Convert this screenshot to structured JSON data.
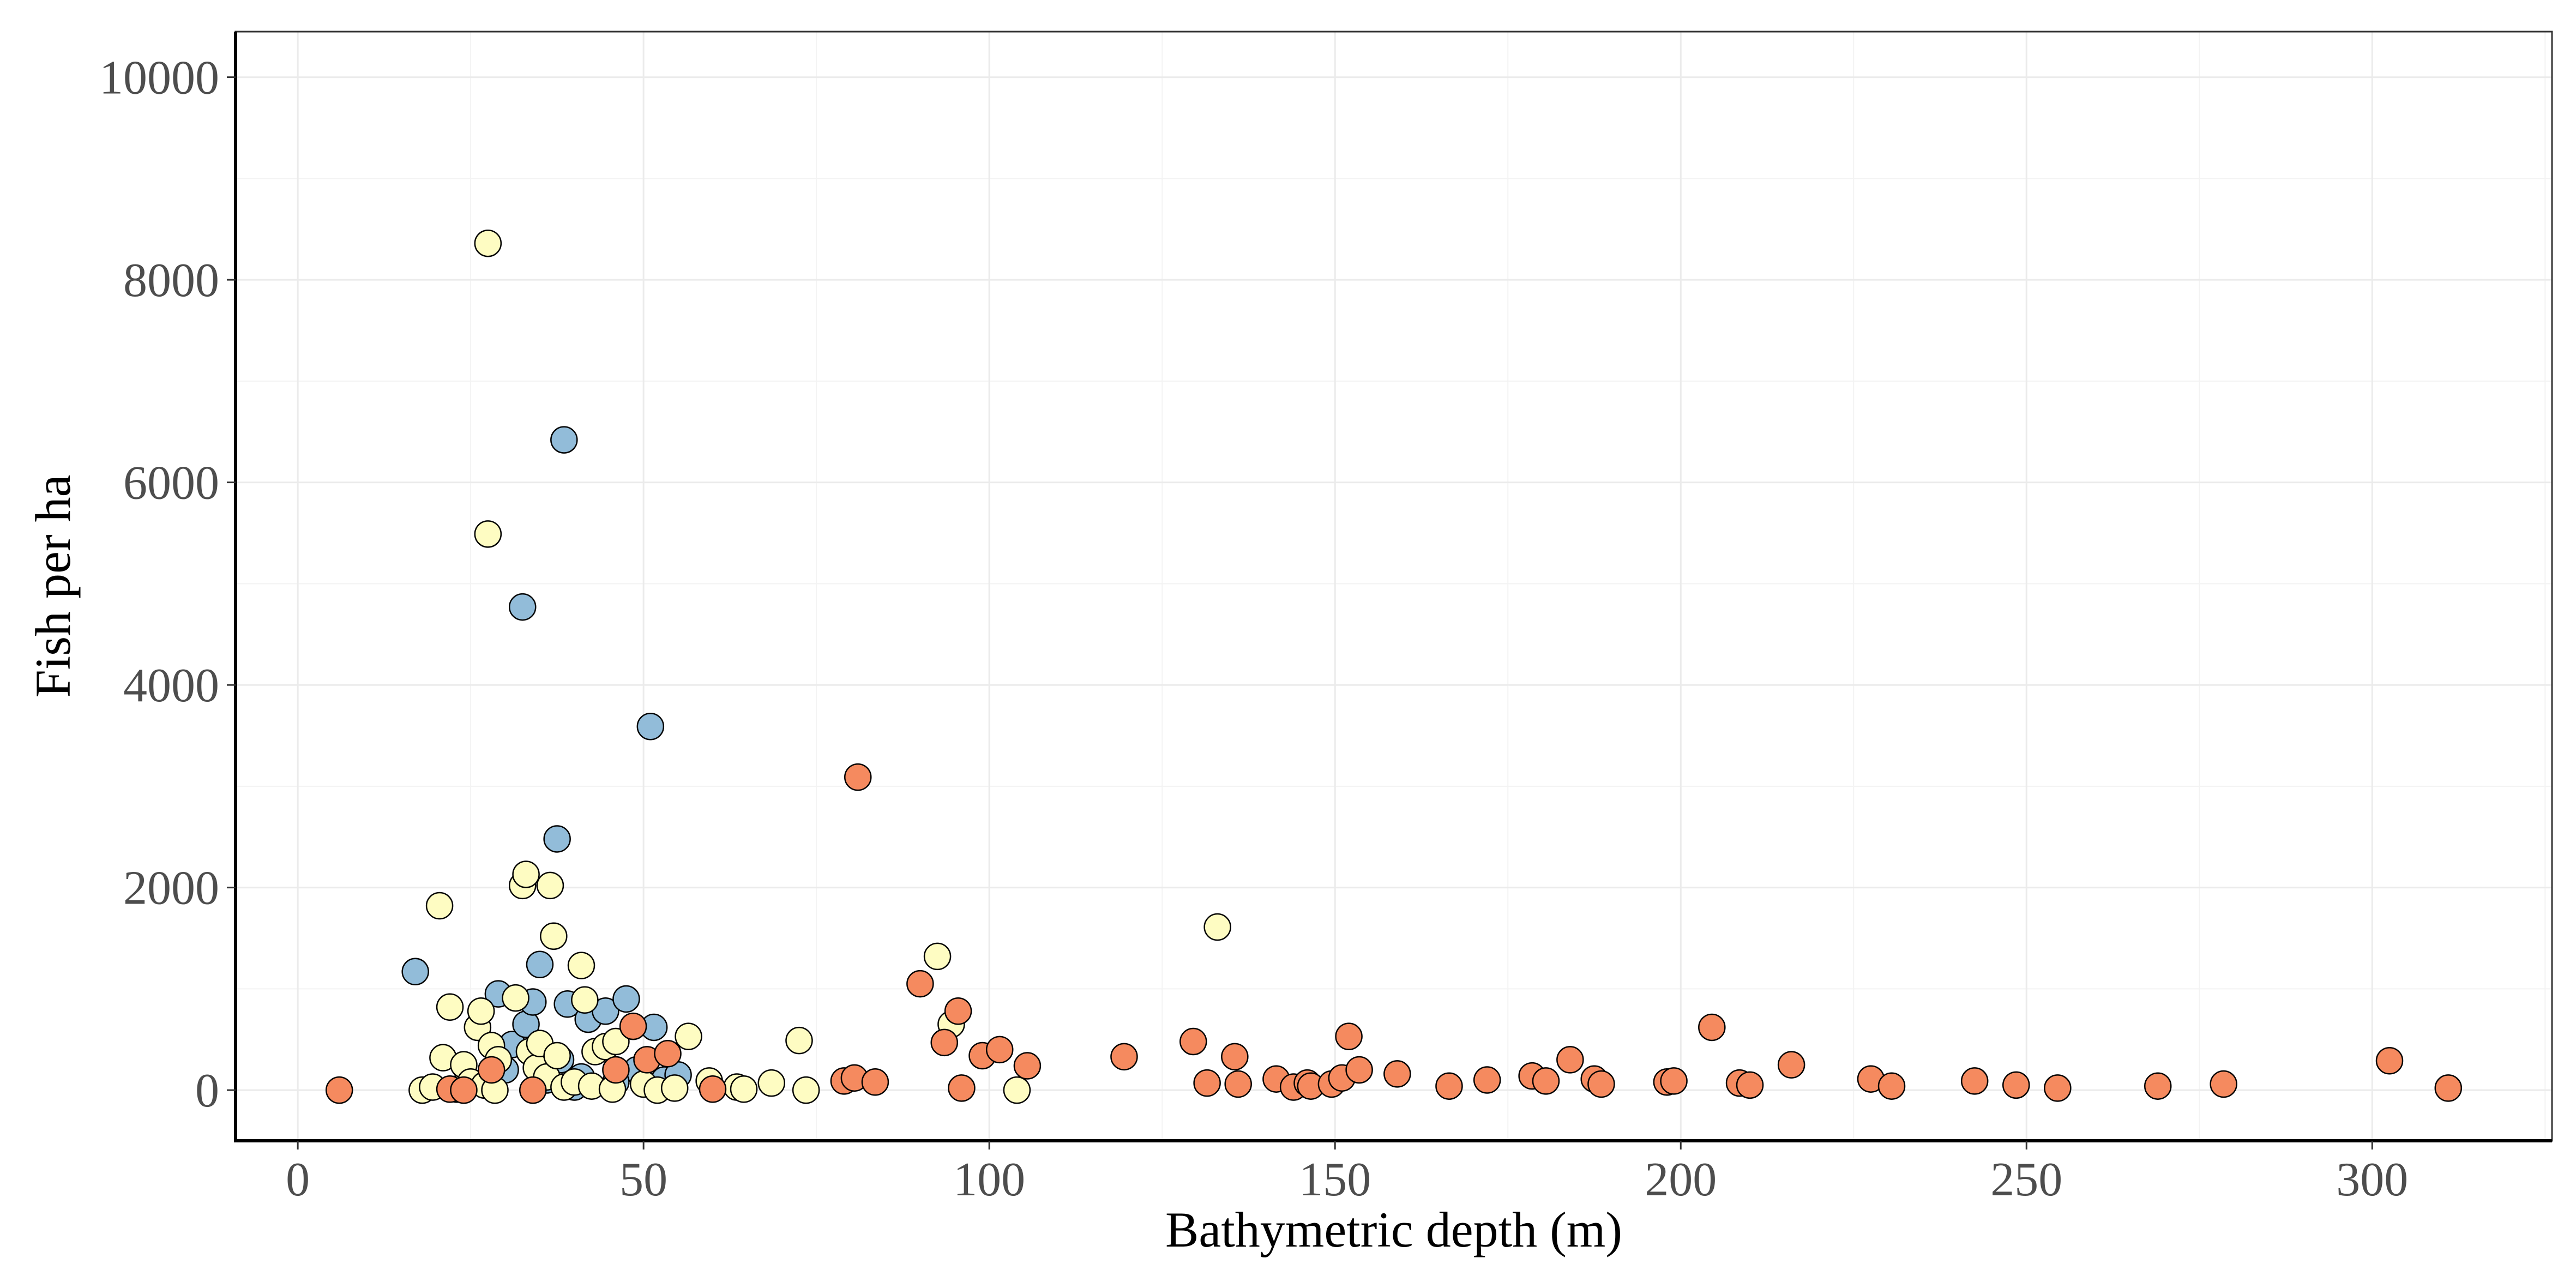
{
  "chart_data": {
    "type": "scatter",
    "title": "",
    "xlabel": "Bathymetric depth (m)",
    "ylabel": "Fish per ha",
    "xlim": [
      -9,
      326
    ],
    "ylim": [
      -500,
      10450
    ],
    "xticks": [
      0,
      50,
      100,
      150,
      200,
      250,
      300
    ],
    "xtick_labels": [
      "0",
      "50",
      "100",
      "150",
      "200",
      "250",
      "300"
    ],
    "yticks": [
      0,
      2000,
      4000,
      6000,
      8000,
      10000
    ],
    "ytick_labels": [
      "0",
      "2000",
      "4000",
      "6000",
      "8000",
      "10000"
    ],
    "grid": true,
    "legend": "none",
    "series": [
      {
        "name": "blue",
        "color": "#92bcd9",
        "points": [
          [
            17,
            1170
          ],
          [
            29,
            950
          ],
          [
            31,
            450
          ],
          [
            32.5,
            4770
          ],
          [
            33,
            650
          ],
          [
            34,
            870
          ],
          [
            35,
            1240
          ],
          [
            37.5,
            2480
          ],
          [
            38,
            300
          ],
          [
            38.5,
            6420
          ],
          [
            39,
            850
          ],
          [
            41,
            130
          ],
          [
            42,
            700
          ],
          [
            44.5,
            780
          ],
          [
            47.5,
            900
          ],
          [
            49,
            200
          ],
          [
            51,
            3590
          ],
          [
            51.5,
            620
          ],
          [
            53,
            100
          ],
          [
            55,
            150
          ],
          [
            30,
            200
          ],
          [
            36,
            100
          ],
          [
            40,
            30
          ],
          [
            46,
            80
          ]
        ]
      },
      {
        "name": "yellow",
        "color": "#fefcc2",
        "points": [
          [
            18,
            0
          ],
          [
            19.5,
            30
          ],
          [
            20.5,
            1820
          ],
          [
            21,
            320
          ],
          [
            22,
            820
          ],
          [
            23,
            10
          ],
          [
            24,
            250
          ],
          [
            25,
            80
          ],
          [
            26,
            620
          ],
          [
            26.5,
            780
          ],
          [
            27,
            50
          ],
          [
            27.5,
            5490
          ],
          [
            27.5,
            8360
          ],
          [
            28,
            440
          ],
          [
            28.5,
            0
          ],
          [
            29,
            300
          ],
          [
            31.5,
            910
          ],
          [
            32.5,
            2020
          ],
          [
            33,
            2130
          ],
          [
            33.5,
            380
          ],
          [
            34.5,
            220
          ],
          [
            35,
            460
          ],
          [
            36,
            130
          ],
          [
            36.5,
            2020
          ],
          [
            37,
            1520
          ],
          [
            37.5,
            340
          ],
          [
            38.5,
            30
          ],
          [
            40,
            80
          ],
          [
            41,
            1230
          ],
          [
            41.5,
            890
          ],
          [
            42.5,
            40
          ],
          [
            43,
            380
          ],
          [
            44.5,
            430
          ],
          [
            45.5,
            10
          ],
          [
            46,
            480
          ],
          [
            50,
            60
          ],
          [
            52,
            0
          ],
          [
            54.5,
            20
          ],
          [
            56.5,
            530
          ],
          [
            59.5,
            90
          ],
          [
            63.5,
            30
          ],
          [
            64.5,
            10
          ],
          [
            68.5,
            70
          ],
          [
            72.5,
            490
          ],
          [
            73.5,
            0
          ],
          [
            92.5,
            1320
          ],
          [
            94.5,
            650
          ],
          [
            104,
            0
          ],
          [
            133,
            1610
          ]
        ]
      },
      {
        "name": "orange",
        "color": "#f58a5f",
        "points": [
          [
            6,
            0
          ],
          [
            22,
            10
          ],
          [
            24,
            0
          ],
          [
            28,
            200
          ],
          [
            34,
            0
          ],
          [
            46,
            200
          ],
          [
            48.5,
            630
          ],
          [
            50.5,
            300
          ],
          [
            53.5,
            360
          ],
          [
            60,
            10
          ],
          [
            79,
            90
          ],
          [
            80.5,
            120
          ],
          [
            81,
            3090
          ],
          [
            83.5,
            80
          ],
          [
            90,
            1050
          ],
          [
            93.5,
            470
          ],
          [
            95.5,
            780
          ],
          [
            96,
            20
          ],
          [
            99,
            340
          ],
          [
            101.5,
            400
          ],
          [
            105.5,
            240
          ],
          [
            119.5,
            330
          ],
          [
            129.5,
            480
          ],
          [
            131.5,
            70
          ],
          [
            135.5,
            330
          ],
          [
            136,
            60
          ],
          [
            141.5,
            110
          ],
          [
            144,
            30
          ],
          [
            146,
            70
          ],
          [
            146.5,
            40
          ],
          [
            149.5,
            60
          ],
          [
            151,
            120
          ],
          [
            152,
            530
          ],
          [
            153.5,
            200
          ],
          [
            159,
            160
          ],
          [
            166.5,
            40
          ],
          [
            172,
            100
          ],
          [
            178.5,
            140
          ],
          [
            180.5,
            90
          ],
          [
            184,
            300
          ],
          [
            187.5,
            110
          ],
          [
            188.5,
            60
          ],
          [
            198,
            80
          ],
          [
            199,
            90
          ],
          [
            204.5,
            620
          ],
          [
            208.5,
            70
          ],
          [
            210,
            50
          ],
          [
            216,
            250
          ],
          [
            227.5,
            110
          ],
          [
            230.5,
            40
          ],
          [
            242.5,
            90
          ],
          [
            248.5,
            50
          ],
          [
            254.5,
            20
          ],
          [
            269,
            40
          ],
          [
            278.5,
            60
          ],
          [
            302.5,
            290
          ],
          [
            311,
            20
          ]
        ]
      }
    ]
  }
}
